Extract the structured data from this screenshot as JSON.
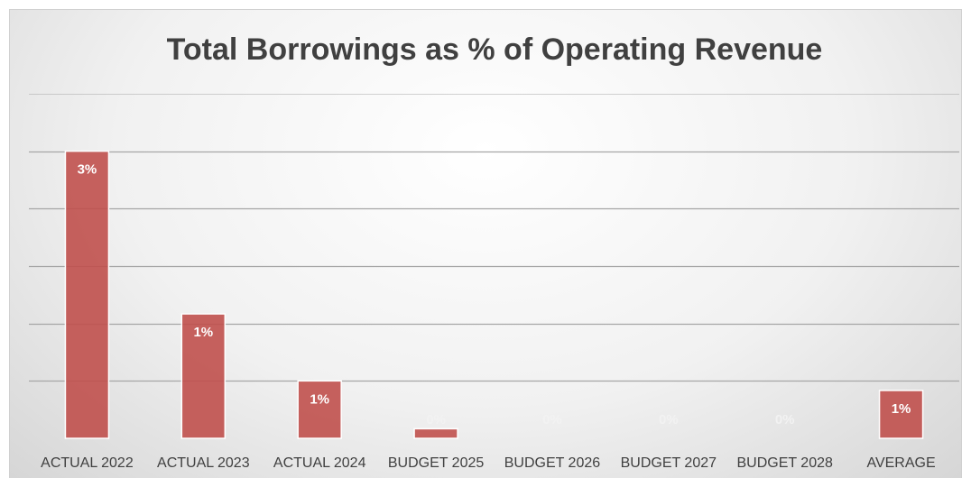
{
  "chart_data": {
    "type": "bar",
    "title": "Total Borrowings as % of Operating Revenue",
    "categories": [
      "ACTUAL 2022",
      "ACTUAL 2023",
      "ACTUAL 2024",
      "BUDGET 2025",
      "BUDGET 2026",
      "BUDGET 2027",
      "BUDGET 2028",
      "AVERAGE"
    ],
    "values": [
      3.0,
      1.3,
      0.6,
      0.1,
      0,
      0,
      0,
      0.5
    ],
    "data_labels": [
      "3%",
      "1%",
      "1%",
      "0%",
      "0%",
      "0%",
      "0%",
      "1%"
    ],
    "ylim": [
      0,
      3.6
    ],
    "gridlines": [
      0.6,
      1.2,
      1.8,
      2.4,
      3.0,
      3.6
    ],
    "grid": true,
    "legend": "none",
    "xlabel": "",
    "ylabel": "",
    "colors": {
      "bar_fill": "#c0504d",
      "bar_stroke": "#ffffff",
      "gridline": "#a6a6a6",
      "text": "#404040"
    }
  }
}
